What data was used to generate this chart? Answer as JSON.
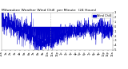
{
  "title": "Milwaukee Weather Wind Chill  per Minute  (24 Hours)",
  "n_points": 1440,
  "y_min": -5,
  "y_max": 3,
  "line_color": "#0000cc",
  "fill_color": "#0000cc",
  "background_color": "#ffffff",
  "plot_bg_color": "#ffffff",
  "legend_label": "Wind Chill",
  "legend_color": "#0000cc",
  "vline_pos": 0.44,
  "vline_color": "#999999",
  "title_fontsize": 3.2,
  "tick_fontsize": 2.5,
  "ytick_fontsize": 2.5,
  "seed": 12345
}
